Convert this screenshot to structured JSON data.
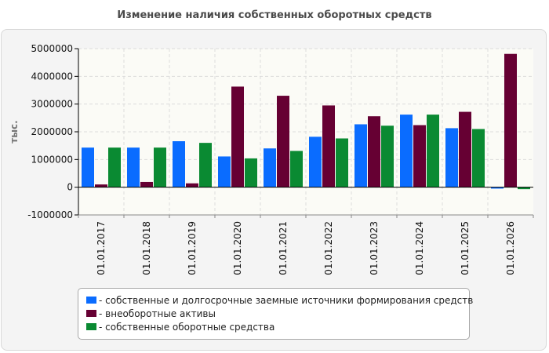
{
  "colors": {
    "series_1": "#0a6cff",
    "series_2": "#660033",
    "series_3": "#0a8a32",
    "plot_bg": "#fbfbf6",
    "grid": "#dcdcdc",
    "axis": "#000000"
  },
  "chart_data": {
    "type": "bar",
    "title": "Изменение наличия собственных оборотных средств",
    "ylabel": "тыс.",
    "xlabel": "",
    "ylim": [
      -1000000,
      5000000
    ],
    "yticks": [
      -1000000,
      0,
      1000000,
      2000000,
      3000000,
      4000000,
      5000000
    ],
    "ytick_labels": [
      "-1000000",
      "0",
      "1000000",
      "2000000",
      "3000000",
      "4000000",
      "5000000"
    ],
    "categories": [
      "01.01.2017",
      "01.01.2018",
      "01.01.2019",
      "01.01.2020",
      "01.01.2021",
      "01.01.2022",
      "01.01.2023",
      "01.01.2024",
      "01.01.2025",
      "01.01.2026"
    ],
    "grid": true,
    "legend_position": "bottom",
    "series": [
      {
        "name": "- собственные и долгосрочные заемные источники формирования средств",
        "values": [
          1430000,
          1430000,
          1660000,
          1110000,
          1400000,
          1820000,
          2270000,
          2620000,
          2130000,
          -50000
        ]
      },
      {
        "name": "- внеоборотные активы",
        "values": [
          100000,
          190000,
          140000,
          3630000,
          3300000,
          2950000,
          2560000,
          2240000,
          2720000,
          4810000
        ]
      },
      {
        "name": "- собственные оборотные средства",
        "values": [
          1430000,
          1430000,
          1600000,
          1040000,
          1310000,
          1760000,
          2220000,
          2620000,
          2100000,
          -70000
        ]
      }
    ]
  }
}
